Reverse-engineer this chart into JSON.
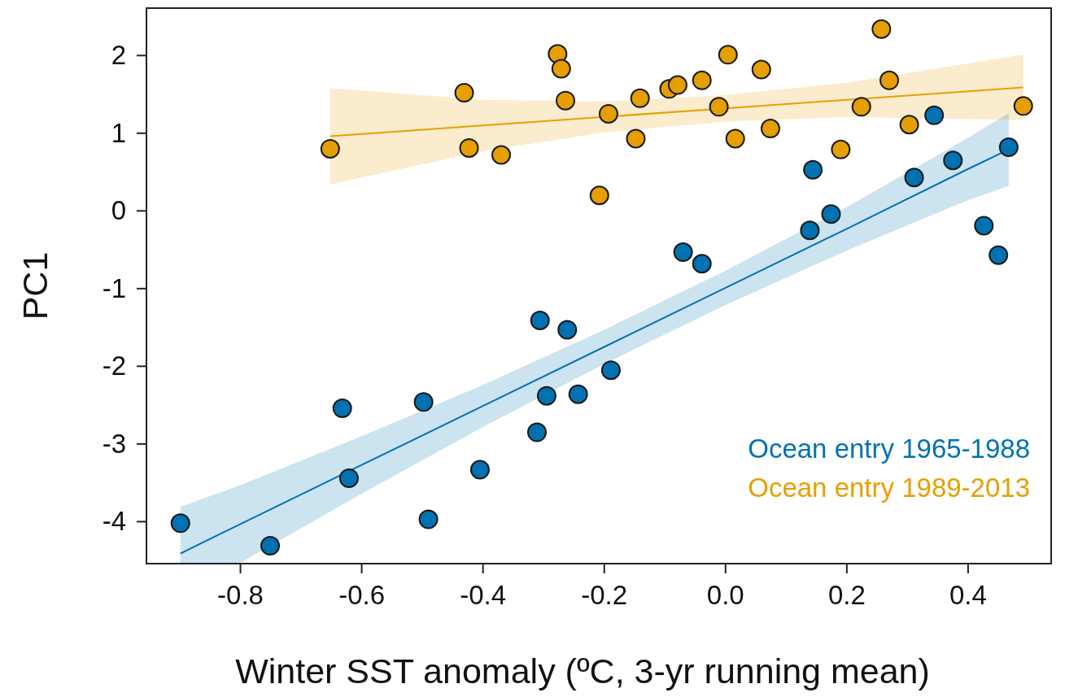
{
  "chart_data": {
    "type": "scatter",
    "xlabel": "Winter SST anomaly (ºC, 3-yr running mean)",
    "ylabel": "PC1",
    "xlim": [
      -0.955,
      0.537
    ],
    "ylim": [
      -4.54,
      2.61
    ],
    "xticks": [
      -0.8,
      -0.6,
      -0.4,
      -0.2,
      {
        "value": 0,
        "label": "0.0"
      },
      0.2,
      0.4
    ],
    "yticks": [
      -4,
      -3,
      -2,
      -1,
      0,
      1,
      2
    ],
    "grid": false,
    "legend": "bottom right",
    "marker": "circle",
    "series": [
      {
        "name": "Ocean entry 1965-1988",
        "color": "#0072b2",
        "x": [
          -0.899,
          -0.751,
          -0.632,
          -0.621,
          -0.498,
          -0.49,
          -0.405,
          -0.306,
          -0.311,
          -0.295,
          -0.261,
          -0.243,
          -0.189,
          -0.07,
          -0.039,
          0.139,
          0.144,
          0.174,
          0.311,
          0.344,
          0.375,
          0.426,
          0.45,
          0.467
        ],
        "values": [
          -4.02,
          -4.31,
          -2.54,
          -3.44,
          -2.46,
          -3.97,
          -3.33,
          -1.41,
          -2.85,
          -2.38,
          -1.53,
          -2.36,
          -2.05,
          -0.53,
          -0.68,
          -0.25,
          0.53,
          -0.04,
          0.43,
          1.23,
          0.65,
          -0.19,
          -0.57,
          0.82
        ]
      },
      {
        "name": "Ocean entry 1989-2013",
        "color": "#e69f00",
        "x": [
          -0.652,
          -0.431,
          -0.423,
          -0.37,
          -0.277,
          -0.271,
          -0.264,
          -0.208,
          -0.193,
          -0.148,
          -0.141,
          -0.093,
          -0.079,
          -0.039,
          -0.011,
          0.004,
          0.016,
          0.059,
          0.074,
          0.19,
          0.224,
          0.257,
          0.27,
          0.303,
          0.491
        ],
        "values": [
          0.8,
          1.52,
          0.81,
          0.72,
          2.02,
          1.83,
          1.42,
          0.2,
          1.25,
          0.93,
          1.45,
          1.57,
          1.62,
          1.68,
          1.34,
          2.01,
          0.93,
          1.82,
          1.06,
          0.79,
          1.34,
          2.34,
          1.68,
          1.11,
          1.35
        ]
      },
      {
        "type": "line",
        "color": "#0072b2",
        "marker": "none",
        "x": [
          -0.899,
          -0.8,
          -0.6,
          -0.4,
          -0.2,
          0,
          0.2,
          0.4,
          0.467
        ],
        "values": [
          -4.41,
          -4.03,
          -3.27,
          -2.51,
          -1.75,
          -0.99,
          -0.23,
          0.54,
          0.79
        ],
        "lower": [
          -4.54,
          -4.53,
          -3.64,
          -2.78,
          -1.97,
          -1.21,
          -0.51,
          0.14,
          0.32
        ],
        "upper": [
          -3.81,
          -3.53,
          -2.9,
          -2.24,
          -1.53,
          -0.77,
          0.05,
          0.94,
          1.26
        ]
      },
      {
        "type": "line",
        "color": "#e69f00",
        "marker": "none",
        "x": [
          -0.652,
          -0.4,
          -0.2,
          0,
          0.2,
          0.491
        ],
        "values": [
          0.96,
          1.1,
          1.21,
          1.32,
          1.43,
          1.59
        ],
        "lower": [
          0.34,
          0.77,
          1.01,
          1.15,
          1.21,
          1.17
        ],
        "upper": [
          1.58,
          1.43,
          1.41,
          1.49,
          1.65,
          2.01
        ]
      }
    ]
  }
}
